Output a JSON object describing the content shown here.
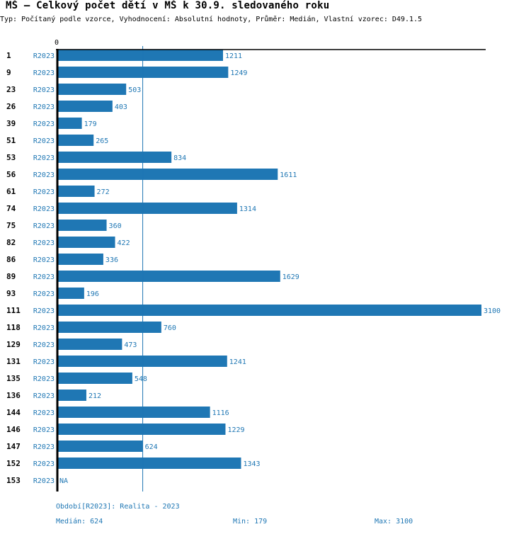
{
  "header": {
    "title": "MŠ – Celkový počet dětí v MŠ k 30.9. sledovaného roku",
    "subtitle": "Typ: Počítaný podle vzorce, Vyhodnocení: Absolutní hodnoty, Průměr: Medián, Vlastní vzorec: D49.1.5"
  },
  "colors": {
    "bar": "#1f77b4",
    "axis": "#000000",
    "median_line": "#1f77b4",
    "label": "#1f77b4"
  },
  "chart_data": {
    "type": "bar",
    "orientation": "horizontal",
    "title": "MŠ – Celkový počet dětí v MŠ k 30.9. sledovaného roku",
    "xlabel": "",
    "ylabel": "",
    "x_tick_labels": [
      "0"
    ],
    "xlim": [
      0,
      3100
    ],
    "series_label": "R2023",
    "categories": [
      "1",
      "9",
      "23",
      "26",
      "39",
      "51",
      "53",
      "56",
      "61",
      "74",
      "75",
      "82",
      "86",
      "89",
      "93",
      "111",
      "118",
      "129",
      "131",
      "135",
      "136",
      "144",
      "146",
      "147",
      "152",
      "153"
    ],
    "values": [
      1211,
      1249,
      503,
      403,
      179,
      265,
      834,
      1611,
      272,
      1314,
      360,
      422,
      336,
      1629,
      196,
      3100,
      760,
      473,
      1241,
      548,
      212,
      1116,
      1229,
      624,
      1343,
      null
    ],
    "value_labels": [
      "1211",
      "1249",
      "503",
      "403",
      "179",
      "265",
      "834",
      "1611",
      "272",
      "1314",
      "360",
      "422",
      "336",
      "1629",
      "196",
      "3100",
      "760",
      "473",
      "1241",
      "548",
      "212",
      "1116",
      "1229",
      "624",
      "1343",
      "NA"
    ],
    "reference_line": {
      "name": "Medián",
      "value": 624
    },
    "grid": false,
    "legend": "none"
  },
  "footer": {
    "period": "Období[R2023]: Realita - 2023",
    "median": "Medián: 624",
    "min": "Min: 179",
    "max": "Max: 3100"
  }
}
